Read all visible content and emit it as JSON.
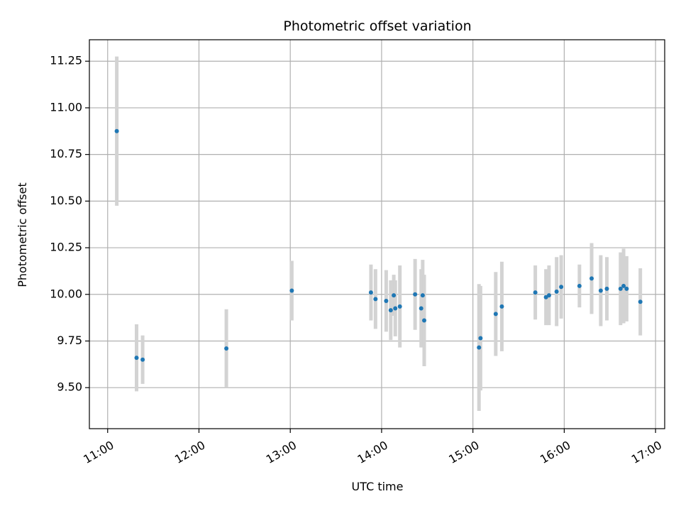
{
  "chart_data": {
    "type": "scatter",
    "title": "Photometric offset variation",
    "xlabel": "UTC time",
    "ylabel": "Photometric offset",
    "x_axis_kind": "time",
    "xlim": [
      "10:48",
      "17:06"
    ],
    "ylim": [
      9.28,
      11.365
    ],
    "x_ticks": [
      "11:00",
      "12:00",
      "13:00",
      "14:00",
      "15:00",
      "16:00",
      "17:00"
    ],
    "y_ticks": [
      9.5,
      9.75,
      10.0,
      10.25,
      10.5,
      10.75,
      11.0,
      11.25
    ],
    "y_tick_labels": [
      "9.50",
      "9.75",
      "10.00",
      "10.25",
      "10.50",
      "10.75",
      "11.00",
      "11.25"
    ],
    "grid": true,
    "series": [
      {
        "points": [
          {
            "x": "11:06",
            "y": 10.875,
            "err": 0.4
          },
          {
            "x": "11:19",
            "y": 9.66,
            "err": 0.18
          },
          {
            "x": "11:23",
            "y": 9.65,
            "err": 0.13
          },
          {
            "x": "12:18",
            "y": 9.71,
            "err": 0.21
          },
          {
            "x": "13:01",
            "y": 10.02,
            "err": 0.16
          },
          {
            "x": "13:53",
            "y": 10.01,
            "err": 0.15
          },
          {
            "x": "13:56",
            "y": 9.975,
            "err": 0.16
          },
          {
            "x": "14:03",
            "y": 9.965,
            "err": 0.165
          },
          {
            "x": "14:06",
            "y": 9.915,
            "err": 0.16
          },
          {
            "x": "14:08",
            "y": 9.995,
            "err": 0.11
          },
          {
            "x": "14:09",
            "y": 9.925,
            "err": 0.15
          },
          {
            "x": "14:12",
            "y": 9.935,
            "err": 0.22
          },
          {
            "x": "14:22",
            "y": 10.0,
            "err": 0.19
          },
          {
            "x": "14:26",
            "y": 9.925,
            "err": 0.21
          },
          {
            "x": "14:27",
            "y": 9.995,
            "err": 0.19
          },
          {
            "x": "14:28",
            "y": 9.86,
            "err": 0.245
          },
          {
            "x": "15:04",
            "y": 9.715,
            "err": 0.34
          },
          {
            "x": "15:05",
            "y": 9.765,
            "err": 0.28
          },
          {
            "x": "15:15",
            "y": 9.895,
            "err": 0.225
          },
          {
            "x": "15:19",
            "y": 9.935,
            "err": 0.24
          },
          {
            "x": "15:41",
            "y": 10.01,
            "err": 0.145
          },
          {
            "x": "15:48",
            "y": 9.985,
            "err": 0.15
          },
          {
            "x": "15:50",
            "y": 9.995,
            "err": 0.16
          },
          {
            "x": "15:55",
            "y": 10.015,
            "err": 0.185
          },
          {
            "x": "15:58",
            "y": 10.04,
            "err": 0.17
          },
          {
            "x": "16:10",
            "y": 10.045,
            "err": 0.115
          },
          {
            "x": "16:18",
            "y": 10.085,
            "err": 0.19
          },
          {
            "x": "16:24",
            "y": 10.02,
            "err": 0.19
          },
          {
            "x": "16:28",
            "y": 10.03,
            "err": 0.17
          },
          {
            "x": "16:37",
            "y": 10.03,
            "err": 0.195
          },
          {
            "x": "16:39",
            "y": 10.045,
            "err": 0.2
          },
          {
            "x": "16:41",
            "y": 10.03,
            "err": 0.175
          },
          {
            "x": "16:50",
            "y": 9.96,
            "err": 0.18
          }
        ]
      }
    ],
    "colors": {
      "marker": "#1f77b4",
      "errorbar": "#d3d3d3",
      "grid": "#b0b0b0",
      "axes": "#000000"
    }
  }
}
